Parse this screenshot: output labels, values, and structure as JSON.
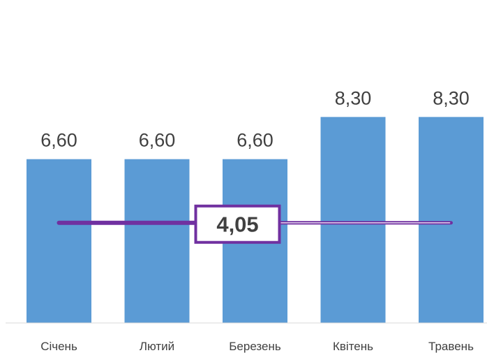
{
  "chart_data": {
    "type": "bar",
    "categories": [
      "Січень",
      "Лютий",
      "Березень",
      "Квітень",
      "Травень"
    ],
    "values": [
      6.6,
      6.6,
      6.6,
      8.3,
      8.3
    ],
    "value_labels": [
      "6,60",
      "6,60",
      "6,60",
      "8,30",
      "8,30"
    ],
    "ylim": [
      0,
      12
    ],
    "grid": false,
    "bar_color": "#5b9bd5",
    "reference_line": {
      "value": 4.05,
      "label": "4,05",
      "color": "#7030a0"
    }
  }
}
